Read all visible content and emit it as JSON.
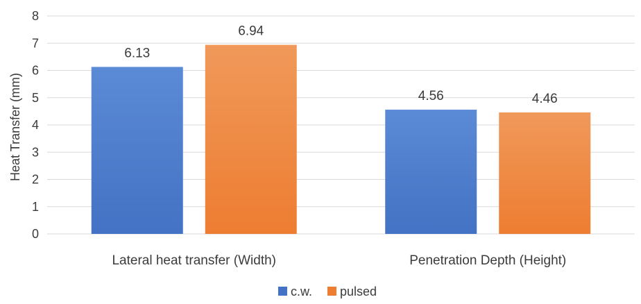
{
  "chart_data": {
    "type": "bar",
    "categories": [
      "Lateral heat transfer (Width)",
      "Penetration Depth (Height)"
    ],
    "series": [
      {
        "name": "c.w.",
        "values": [
          6.13,
          4.56
        ],
        "color": "#4472c4",
        "color_light": "#5b8ad6"
      },
      {
        "name": "pulsed",
        "values": [
          6.94,
          4.46
        ],
        "color": "#ed7d31",
        "color_light": "#f0995a"
      }
    ],
    "data_labels": [
      [
        "6.13",
        "4.56"
      ],
      [
        "6.94",
        "4.46"
      ]
    ],
    "title": "",
    "xlabel": "",
    "ylabel": "Heat Transfer (mm)",
    "ylim": [
      0,
      8
    ],
    "yticks": [
      0,
      1,
      2,
      3,
      4,
      5,
      6,
      7,
      8
    ],
    "ytick_labels": [
      "0",
      "1",
      "2",
      "3",
      "4",
      "5",
      "6",
      "7",
      "8"
    ],
    "grid": true,
    "legend_position": "bottom"
  }
}
